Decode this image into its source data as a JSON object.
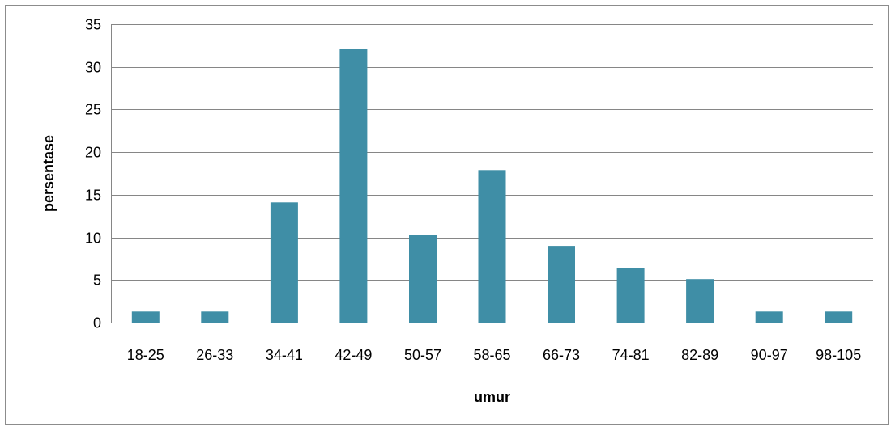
{
  "chart_data": {
    "type": "bar",
    "categories": [
      "18-25",
      "26-33",
      "34-41",
      "42-49",
      "50-57",
      "58-65",
      "66-73",
      "74-81",
      "82-89",
      "90-97",
      "98-105"
    ],
    "values": [
      1.3,
      1.3,
      14.1,
      32.1,
      10.3,
      17.9,
      9.0,
      6.4,
      5.1,
      1.3,
      1.3
    ],
    "title": "",
    "xlabel": "umur",
    "ylabel": "persentase",
    "ylim": [
      0,
      35
    ],
    "yticks": [
      0,
      5,
      10,
      15,
      20,
      25,
      30,
      35
    ],
    "grid": true,
    "legend": "none",
    "colors": {
      "bar": "#3f8ea6",
      "grid": "#868686",
      "frame": "#8c8c8c"
    }
  }
}
